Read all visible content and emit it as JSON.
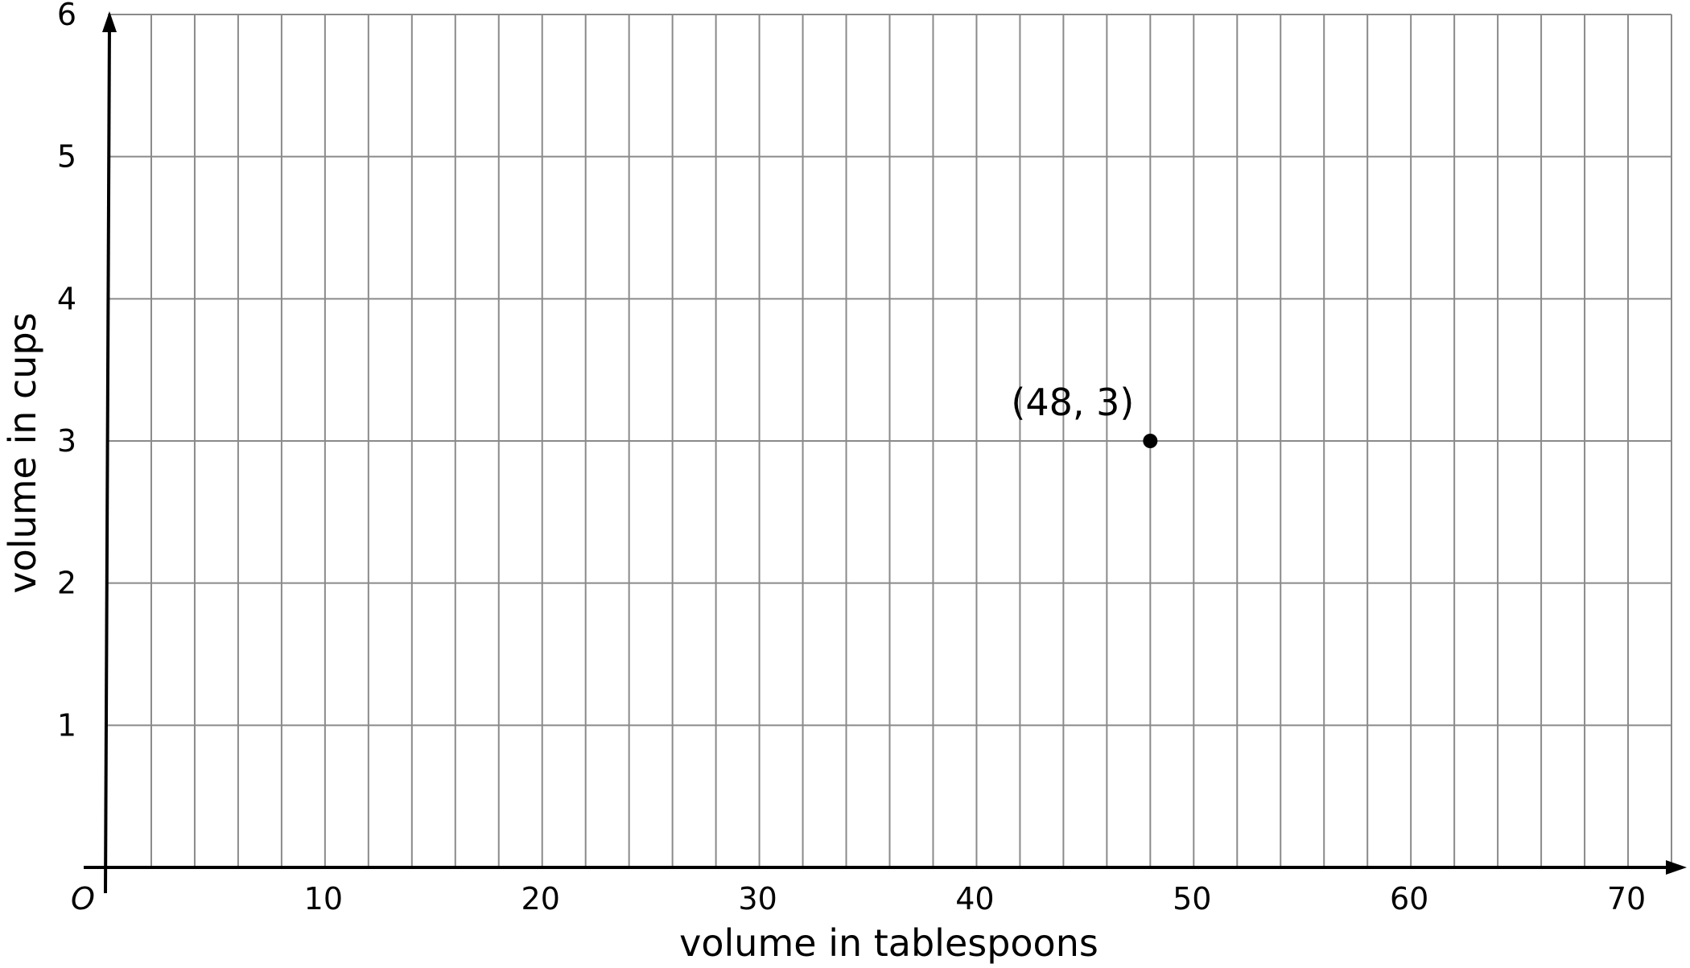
{
  "chart_data": {
    "type": "scatter",
    "title": "",
    "xlabel": "volume in tablespoons",
    "ylabel": "volume in cups",
    "origin_label": "O",
    "xlim": [
      0,
      72
    ],
    "ylim": [
      0,
      6
    ],
    "x_grid_step": 2,
    "y_grid_step": 1,
    "grid": true,
    "x_tick_labels": [
      {
        "value": 10,
        "text": "10"
      },
      {
        "value": 20,
        "text": "20"
      },
      {
        "value": 30,
        "text": "30"
      },
      {
        "value": 40,
        "text": "40"
      },
      {
        "value": 50,
        "text": "50"
      },
      {
        "value": 60,
        "text": "60"
      },
      {
        "value": 70,
        "text": "70"
      }
    ],
    "y_tick_labels": [
      {
        "value": 1,
        "text": "1"
      },
      {
        "value": 2,
        "text": "2"
      },
      {
        "value": 3,
        "text": "3"
      },
      {
        "value": 4,
        "text": "4"
      },
      {
        "value": 5,
        "text": "5"
      },
      {
        "value": 6,
        "text": "6"
      }
    ],
    "points": [
      {
        "x": 48,
        "y": 3,
        "label": "(48, 3)"
      }
    ],
    "colors": {
      "grid": "#8a8a8a",
      "axis": "#000000",
      "point": "#000000"
    }
  }
}
